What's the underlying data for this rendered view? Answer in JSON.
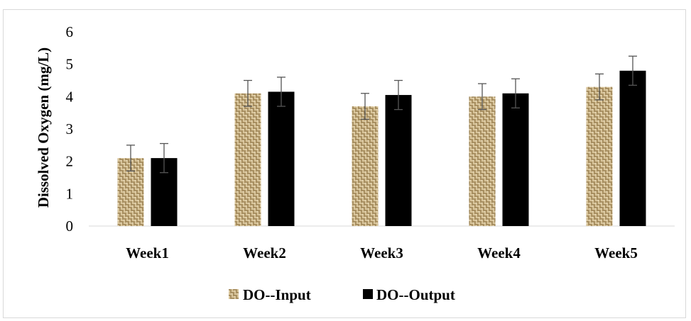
{
  "chart_data": {
    "type": "bar",
    "title": "",
    "xlabel": "",
    "ylabel": "Dissolved Oxygen (mg/L)",
    "ylim": [
      0,
      6
    ],
    "yticks": [
      0,
      1,
      2,
      3,
      4,
      5,
      6
    ],
    "grid": false,
    "legend_position": "bottom",
    "categories": [
      "Week1",
      "Week2",
      "Week3",
      "Week4",
      "Week5"
    ],
    "series": [
      {
        "name": "DO--Input",
        "values": [
          2.1,
          4.1,
          3.7,
          4.0,
          4.3
        ],
        "error": [
          0.4,
          0.4,
          0.4,
          0.4,
          0.4
        ],
        "fill": "pattern-beige-weave",
        "color": "#c9b27e"
      },
      {
        "name": "DO--Output",
        "values": [
          2.1,
          4.15,
          4.05,
          4.1,
          4.8
        ],
        "error": [
          0.45,
          0.45,
          0.45,
          0.45,
          0.45
        ],
        "fill": "solid",
        "color": "#000000"
      }
    ]
  }
}
